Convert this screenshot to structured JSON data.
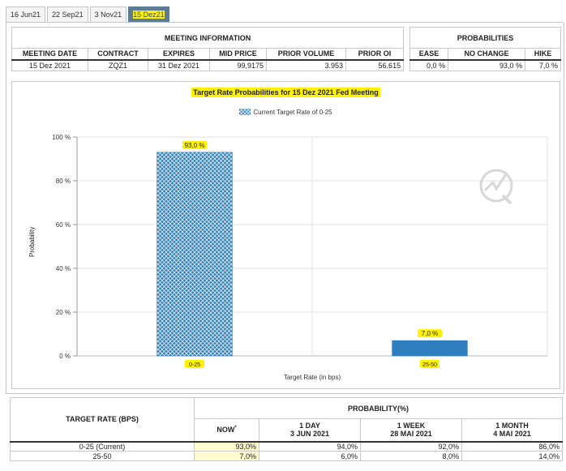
{
  "tabs": [
    {
      "label": "16 Jun21",
      "active": false
    },
    {
      "label": "22 Sep21",
      "active": false
    },
    {
      "label": "3 Nov21",
      "active": false
    },
    {
      "label": "15 Dez21",
      "active": true
    }
  ],
  "meeting": {
    "section_title": "MEETING INFORMATION",
    "headers": [
      "MEETING DATE",
      "CONTRACT",
      "EXPIRES",
      "MID PRICE",
      "PRIOR VOLUME",
      "PRIOR OI"
    ],
    "row": [
      "15 Dez 2021",
      "ZQZ1",
      "31 Dez 2021",
      "99,9175",
      "3.953",
      "56.615"
    ]
  },
  "probabilities": {
    "section_title": "PROBABILITIES",
    "headers": [
      "EASE",
      "NO CHANGE",
      "HIKE"
    ],
    "row": [
      "0,0 %",
      "93,0 %",
      "7,0 %"
    ]
  },
  "chart_data": {
    "type": "bar",
    "title": "Target Rate Probabilities for 15 Dez 2021 Fed Meeting",
    "legend": "Current Target Rate of 0-25",
    "xlabel": "Target Rate (in bps)",
    "ylabel": "Probability",
    "categories": [
      "0-25",
      "25-50"
    ],
    "values": [
      93.0,
      7.0
    ],
    "data_labels": [
      "93,0 %",
      "7,0 %"
    ],
    "yticks": [
      "0 %",
      "20 %",
      "40 %",
      "60 %",
      "80 %",
      "100 %"
    ],
    "ylim": [
      0,
      100
    ],
    "bar_styles": [
      "hatched",
      "solid"
    ],
    "colors": {
      "bar": "#2f7fc0",
      "highlight": "#fff200"
    }
  },
  "rates_table": {
    "col_header": "TARGET RATE (BPS)",
    "group_header": "PROBABILITY(%)",
    "sub_headers": [
      {
        "line1": "NOW",
        "line2": "",
        "sup": "*"
      },
      {
        "line1": "1 DAY",
        "line2": "3 JUN 2021",
        "sup": ""
      },
      {
        "line1": "1 WEEK",
        "line2": "28 MAI 2021",
        "sup": ""
      },
      {
        "line1": "1 MONTH",
        "line2": "4 MAI 2021",
        "sup": ""
      }
    ],
    "rows": [
      {
        "rate": "0-25 (Current)",
        "values": [
          "93,0%",
          "94,0%",
          "92,0%",
          "86,0%"
        ]
      },
      {
        "rate": "25-50",
        "values": [
          "7,0%",
          "6,0%",
          "8,0%",
          "14,0%"
        ]
      }
    ]
  }
}
